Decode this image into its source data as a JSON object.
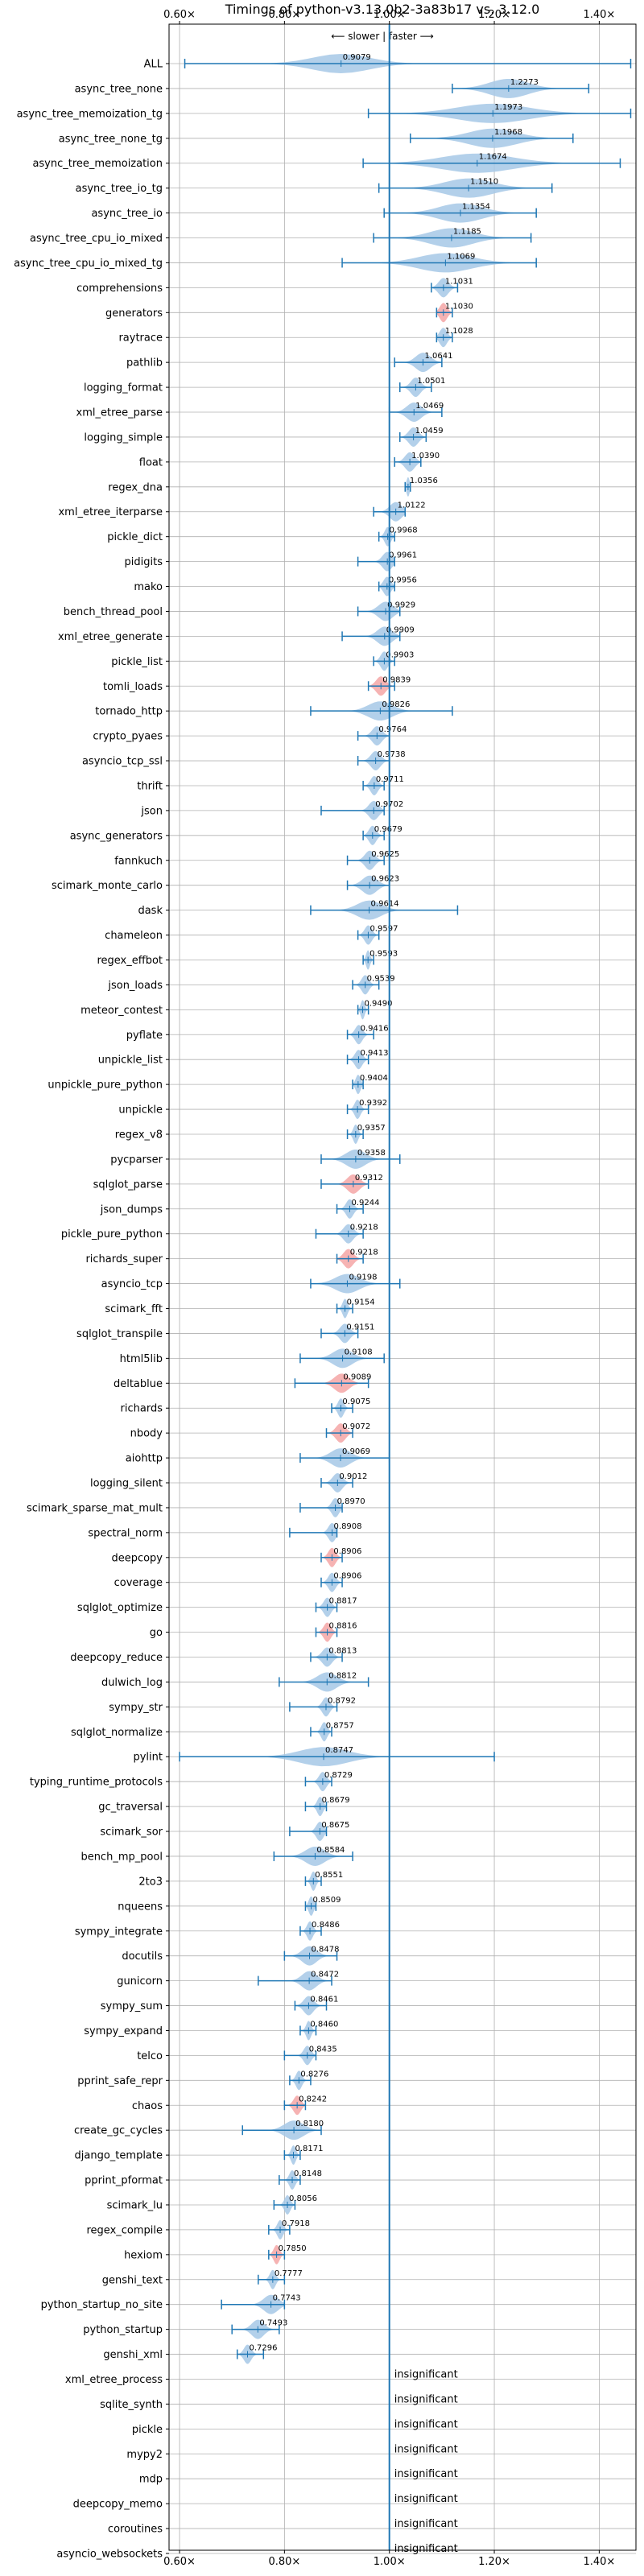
{
  "chart_data": {
    "type": "violin",
    "title": "Timings of python-v3.13.0b2-3a83b17 vs. 3.12.0",
    "subtitle": "⟵ slower | faster ⟶",
    "xlim": [
      0.58,
      1.47
    ],
    "xticks": [
      "0.60×",
      "0.80×",
      "1.00×",
      "1.20×",
      "1.40×"
    ],
    "xtick_values": [
      0.6,
      0.8,
      1.0,
      1.2,
      1.4
    ],
    "grid": true,
    "colors": {
      "normal": "#a6c8e6",
      "regression": "#f4a6a6",
      "line": "#1f77b4"
    },
    "insignificant_label": "insignificant",
    "benchmarks": [
      {
        "name": "ALL",
        "value": 0.9079,
        "label": "0.9079",
        "lo": 0.61,
        "hi": 1.46,
        "spread": 0.12,
        "color": "normal"
      },
      {
        "name": "async_tree_none",
        "value": 1.2273,
        "label": "1.2273",
        "lo": 1.12,
        "hi": 1.38,
        "spread": 0.08,
        "color": "normal"
      },
      {
        "name": "async_tree_memoization_tg",
        "value": 1.1973,
        "label": "1.1973",
        "lo": 0.96,
        "hi": 1.46,
        "spread": 0.15,
        "color": "normal"
      },
      {
        "name": "async_tree_none_tg",
        "value": 1.1968,
        "label": "1.1968",
        "lo": 1.04,
        "hi": 1.35,
        "spread": 0.1,
        "color": "normal"
      },
      {
        "name": "async_tree_memoization",
        "value": 1.1674,
        "label": "1.1674",
        "lo": 0.95,
        "hi": 1.44,
        "spread": 0.15,
        "color": "normal"
      },
      {
        "name": "async_tree_io_tg",
        "value": 1.151,
        "label": "1.1510",
        "lo": 0.98,
        "hi": 1.31,
        "spread": 0.1,
        "color": "normal"
      },
      {
        "name": "async_tree_io",
        "value": 1.1354,
        "label": "1.1354",
        "lo": 0.99,
        "hi": 1.28,
        "spread": 0.09,
        "color": "normal"
      },
      {
        "name": "async_tree_cpu_io_mixed",
        "value": 1.1185,
        "label": "1.1185",
        "lo": 0.97,
        "hi": 1.27,
        "spread": 0.09,
        "color": "normal"
      },
      {
        "name": "async_tree_cpu_io_mixed_tg",
        "value": 1.1069,
        "label": "1.1069",
        "lo": 0.91,
        "hi": 1.28,
        "spread": 0.11,
        "color": "normal"
      },
      {
        "name": "comprehensions",
        "value": 1.1031,
        "label": "1.1031",
        "lo": 1.08,
        "hi": 1.13,
        "spread": 0.02,
        "color": "normal"
      },
      {
        "name": "generators",
        "value": 1.103,
        "label": "1.1030",
        "lo": 1.09,
        "hi": 1.12,
        "spread": 0.015,
        "color": "regression"
      },
      {
        "name": "raytrace",
        "value": 1.1028,
        "label": "1.1028",
        "lo": 1.09,
        "hi": 1.12,
        "spread": 0.015,
        "color": "normal"
      },
      {
        "name": "pathlib",
        "value": 1.0641,
        "label": "1.0641",
        "lo": 1.01,
        "hi": 1.1,
        "spread": 0.03,
        "color": "normal"
      },
      {
        "name": "logging_format",
        "value": 1.0501,
        "label": "1.0501",
        "lo": 1.02,
        "hi": 1.08,
        "spread": 0.02,
        "color": "normal"
      },
      {
        "name": "xml_etree_parse",
        "value": 1.0469,
        "label": "1.0469",
        "lo": 1.0,
        "hi": 1.1,
        "spread": 0.03,
        "color": "normal"
      },
      {
        "name": "logging_simple",
        "value": 1.0459,
        "label": "1.0459",
        "lo": 1.02,
        "hi": 1.07,
        "spread": 0.02,
        "color": "normal"
      },
      {
        "name": "float",
        "value": 1.039,
        "label": "1.0390",
        "lo": 1.01,
        "hi": 1.06,
        "spread": 0.02,
        "color": "normal"
      },
      {
        "name": "regex_dna",
        "value": 1.0356,
        "label": "1.0356",
        "lo": 1.03,
        "hi": 1.04,
        "spread": 0.006,
        "color": "normal"
      },
      {
        "name": "xml_etree_iterparse",
        "value": 1.0122,
        "label": "1.0122",
        "lo": 0.97,
        "hi": 1.03,
        "spread": 0.025,
        "color": "normal"
      },
      {
        "name": "pickle_dict",
        "value": 0.9968,
        "label": "0.9968",
        "lo": 0.98,
        "hi": 1.01,
        "spread": 0.012,
        "color": "normal"
      },
      {
        "name": "pidigits",
        "value": 0.9961,
        "label": "0.9961",
        "lo": 0.94,
        "hi": 1.01,
        "spread": 0.02,
        "color": "normal"
      },
      {
        "name": "mako",
        "value": 0.9956,
        "label": "0.9956",
        "lo": 0.98,
        "hi": 1.01,
        "spread": 0.015,
        "color": "normal"
      },
      {
        "name": "bench_thread_pool",
        "value": 0.9929,
        "label": "0.9929",
        "lo": 0.94,
        "hi": 1.02,
        "spread": 0.03,
        "color": "normal"
      },
      {
        "name": "xml_etree_generate",
        "value": 0.9909,
        "label": "0.9909",
        "lo": 0.91,
        "hi": 1.02,
        "spread": 0.03,
        "color": "normal"
      },
      {
        "name": "pickle_list",
        "value": 0.9903,
        "label": "0.9903",
        "lo": 0.97,
        "hi": 1.01,
        "spread": 0.015,
        "color": "normal"
      },
      {
        "name": "tomli_loads",
        "value": 0.9839,
        "label": "0.9839",
        "lo": 0.96,
        "hi": 1.01,
        "spread": 0.02,
        "color": "regression"
      },
      {
        "name": "tornado_http",
        "value": 0.9826,
        "label": "0.9826",
        "lo": 0.85,
        "hi": 1.12,
        "spread": 0.05,
        "color": "normal"
      },
      {
        "name": "crypto_pyaes",
        "value": 0.9764,
        "label": "0.9764",
        "lo": 0.94,
        "hi": 1.0,
        "spread": 0.02,
        "color": "normal"
      },
      {
        "name": "asyncio_tcp_ssl",
        "value": 0.9738,
        "label": "0.9738",
        "lo": 0.94,
        "hi": 1.0,
        "spread": 0.02,
        "color": "normal"
      },
      {
        "name": "thrift",
        "value": 0.9711,
        "label": "0.9711",
        "lo": 0.95,
        "hi": 0.99,
        "spread": 0.015,
        "color": "normal"
      },
      {
        "name": "json",
        "value": 0.9702,
        "label": "0.9702",
        "lo": 0.87,
        "hi": 0.99,
        "spread": 0.02,
        "color": "normal"
      },
      {
        "name": "async_generators",
        "value": 0.9679,
        "label": "0.9679",
        "lo": 0.95,
        "hi": 0.99,
        "spread": 0.015,
        "color": "normal"
      },
      {
        "name": "fannkuch",
        "value": 0.9625,
        "label": "0.9625",
        "lo": 0.92,
        "hi": 0.99,
        "spread": 0.02,
        "color": "normal"
      },
      {
        "name": "scimark_monte_carlo",
        "value": 0.9623,
        "label": "0.9623",
        "lo": 0.92,
        "hi": 1.0,
        "spread": 0.03,
        "color": "normal"
      },
      {
        "name": "dask",
        "value": 0.9614,
        "label": "0.9614",
        "lo": 0.85,
        "hi": 1.13,
        "spread": 0.05,
        "color": "normal"
      },
      {
        "name": "chameleon",
        "value": 0.9597,
        "label": "0.9597",
        "lo": 0.94,
        "hi": 0.98,
        "spread": 0.015,
        "color": "normal"
      },
      {
        "name": "regex_effbot",
        "value": 0.9593,
        "label": "0.9593",
        "lo": 0.95,
        "hi": 0.97,
        "spread": 0.008,
        "color": "normal"
      },
      {
        "name": "json_loads",
        "value": 0.9539,
        "label": "0.9539",
        "lo": 0.93,
        "hi": 0.98,
        "spread": 0.015,
        "color": "normal"
      },
      {
        "name": "meteor_contest",
        "value": 0.949,
        "label": "0.9490",
        "lo": 0.94,
        "hi": 0.96,
        "spread": 0.008,
        "color": "normal"
      },
      {
        "name": "pyflate",
        "value": 0.9416,
        "label": "0.9416",
        "lo": 0.92,
        "hi": 0.97,
        "spread": 0.015,
        "color": "normal"
      },
      {
        "name": "unpickle_list",
        "value": 0.9413,
        "label": "0.9413",
        "lo": 0.92,
        "hi": 0.96,
        "spread": 0.015,
        "color": "normal"
      },
      {
        "name": "unpickle_pure_python",
        "value": 0.9404,
        "label": "0.9404",
        "lo": 0.93,
        "hi": 0.95,
        "spread": 0.01,
        "color": "normal"
      },
      {
        "name": "unpickle",
        "value": 0.9392,
        "label": "0.9392",
        "lo": 0.92,
        "hi": 0.96,
        "spread": 0.012,
        "color": "normal"
      },
      {
        "name": "regex_v8",
        "value": 0.9357,
        "label": "0.9357",
        "lo": 0.92,
        "hi": 0.95,
        "spread": 0.01,
        "color": "normal"
      },
      {
        "name": "pycparser",
        "value": 0.9358,
        "label": "0.9358",
        "lo": 0.87,
        "hi": 1.02,
        "spread": 0.04,
        "color": "normal"
      },
      {
        "name": "sqlglot_parse",
        "value": 0.9312,
        "label": "0.9312",
        "lo": 0.87,
        "hi": 0.96,
        "spread": 0.025,
        "color": "regression"
      },
      {
        "name": "json_dumps",
        "value": 0.9244,
        "label": "0.9244",
        "lo": 0.9,
        "hi": 0.95,
        "spread": 0.015,
        "color": "normal"
      },
      {
        "name": "pickle_pure_python",
        "value": 0.9218,
        "label": "0.9218",
        "lo": 0.86,
        "hi": 0.95,
        "spread": 0.02,
        "color": "normal"
      },
      {
        "name": "richards_super",
        "value": 0.9218,
        "label": "0.9218",
        "lo": 0.9,
        "hi": 0.95,
        "spread": 0.02,
        "color": "regression"
      },
      {
        "name": "asyncio_tcp",
        "value": 0.9198,
        "label": "0.9198",
        "lo": 0.85,
        "hi": 1.02,
        "spread": 0.05,
        "color": "normal"
      },
      {
        "name": "scimark_fft",
        "value": 0.9154,
        "label": "0.9154",
        "lo": 0.9,
        "hi": 0.93,
        "spread": 0.01,
        "color": "normal"
      },
      {
        "name": "sqlglot_transpile",
        "value": 0.9151,
        "label": "0.9151",
        "lo": 0.87,
        "hi": 0.94,
        "spread": 0.02,
        "color": "normal"
      },
      {
        "name": "html5lib",
        "value": 0.9108,
        "label": "0.9108",
        "lo": 0.83,
        "hi": 0.99,
        "spread": 0.04,
        "color": "normal"
      },
      {
        "name": "deltablue",
        "value": 0.9089,
        "label": "0.9089",
        "lo": 0.82,
        "hi": 0.96,
        "spread": 0.03,
        "color": "regression"
      },
      {
        "name": "richards",
        "value": 0.9075,
        "label": "0.9075",
        "lo": 0.89,
        "hi": 0.93,
        "spread": 0.012,
        "color": "normal"
      },
      {
        "name": "nbody",
        "value": 0.9072,
        "label": "0.9072",
        "lo": 0.88,
        "hi": 0.93,
        "spread": 0.02,
        "color": "regression"
      },
      {
        "name": "aiohttp",
        "value": 0.9069,
        "label": "0.9069",
        "lo": 0.83,
        "hi": 1.0,
        "spread": 0.04,
        "color": "normal"
      },
      {
        "name": "logging_silent",
        "value": 0.9012,
        "label": "0.9012",
        "lo": 0.87,
        "hi": 0.93,
        "spread": 0.02,
        "color": "normal"
      },
      {
        "name": "scimark_sparse_mat_mult",
        "value": 0.897,
        "label": "0.8970",
        "lo": 0.83,
        "hi": 0.91,
        "spread": 0.015,
        "color": "normal"
      },
      {
        "name": "spectral_norm",
        "value": 0.8908,
        "label": "0.8908",
        "lo": 0.81,
        "hi": 0.9,
        "spread": 0.015,
        "color": "normal"
      },
      {
        "name": "deepcopy",
        "value": 0.8906,
        "label": "0.8906",
        "lo": 0.87,
        "hi": 0.91,
        "spread": 0.015,
        "color": "regression"
      },
      {
        "name": "coverage",
        "value": 0.8906,
        "label": "0.8906",
        "lo": 0.87,
        "hi": 0.91,
        "spread": 0.015,
        "color": "normal"
      },
      {
        "name": "sqlglot_optimize",
        "value": 0.8817,
        "label": "0.8817",
        "lo": 0.86,
        "hi": 0.9,
        "spread": 0.015,
        "color": "normal"
      },
      {
        "name": "go",
        "value": 0.8816,
        "label": "0.8816",
        "lo": 0.86,
        "hi": 0.9,
        "spread": 0.015,
        "color": "regression"
      },
      {
        "name": "deepcopy_reduce",
        "value": 0.8813,
        "label": "0.8813",
        "lo": 0.85,
        "hi": 0.91,
        "spread": 0.02,
        "color": "normal"
      },
      {
        "name": "dulwich_log",
        "value": 0.8812,
        "label": "0.8812",
        "lo": 0.79,
        "hi": 0.96,
        "spread": 0.04,
        "color": "normal"
      },
      {
        "name": "sympy_str",
        "value": 0.8792,
        "label": "0.8792",
        "lo": 0.81,
        "hi": 0.9,
        "spread": 0.015,
        "color": "normal"
      },
      {
        "name": "sqlglot_normalize",
        "value": 0.8757,
        "label": "0.8757",
        "lo": 0.85,
        "hi": 0.89,
        "spread": 0.012,
        "color": "normal"
      },
      {
        "name": "pylint",
        "value": 0.8747,
        "label": "0.8747",
        "lo": 0.6,
        "hi": 1.2,
        "spread": 0.1,
        "color": "normal"
      },
      {
        "name": "typing_runtime_protocols",
        "value": 0.8729,
        "label": "0.8729",
        "lo": 0.84,
        "hi": 0.89,
        "spread": 0.015,
        "color": "normal"
      },
      {
        "name": "gc_traversal",
        "value": 0.8679,
        "label": "0.8679",
        "lo": 0.84,
        "hi": 0.88,
        "spread": 0.012,
        "color": "normal"
      },
      {
        "name": "scimark_sor",
        "value": 0.8675,
        "label": "0.8675",
        "lo": 0.81,
        "hi": 0.88,
        "spread": 0.015,
        "color": "normal"
      },
      {
        "name": "bench_mp_pool",
        "value": 0.8584,
        "label": "0.8584",
        "lo": 0.78,
        "hi": 0.93,
        "spread": 0.04,
        "color": "normal"
      },
      {
        "name": "2to3",
        "value": 0.8551,
        "label": "0.8551",
        "lo": 0.84,
        "hi": 0.87,
        "spread": 0.01,
        "color": "normal"
      },
      {
        "name": "nqueens",
        "value": 0.8509,
        "label": "0.8509",
        "lo": 0.84,
        "hi": 0.86,
        "spread": 0.01,
        "color": "normal"
      },
      {
        "name": "sympy_integrate",
        "value": 0.8486,
        "label": "0.8486",
        "lo": 0.83,
        "hi": 0.87,
        "spread": 0.012,
        "color": "normal"
      },
      {
        "name": "docutils",
        "value": 0.8478,
        "label": "0.8478",
        "lo": 0.8,
        "hi": 0.9,
        "spread": 0.03,
        "color": "normal"
      },
      {
        "name": "gunicorn",
        "value": 0.8472,
        "label": "0.8472",
        "lo": 0.75,
        "hi": 0.89,
        "spread": 0.03,
        "color": "normal"
      },
      {
        "name": "sympy_sum",
        "value": 0.8461,
        "label": "0.8461",
        "lo": 0.82,
        "hi": 0.88,
        "spread": 0.02,
        "color": "normal"
      },
      {
        "name": "sympy_expand",
        "value": 0.846,
        "label": "0.8460",
        "lo": 0.83,
        "hi": 0.86,
        "spread": 0.01,
        "color": "normal"
      },
      {
        "name": "telco",
        "value": 0.8435,
        "label": "0.8435",
        "lo": 0.8,
        "hi": 0.86,
        "spread": 0.015,
        "color": "normal"
      },
      {
        "name": "pprint_safe_repr",
        "value": 0.8276,
        "label": "0.8276",
        "lo": 0.81,
        "hi": 0.85,
        "spread": 0.012,
        "color": "normal"
      },
      {
        "name": "chaos",
        "value": 0.8242,
        "label": "0.8242",
        "lo": 0.8,
        "hi": 0.84,
        "spread": 0.015,
        "color": "regression"
      },
      {
        "name": "create_gc_cycles",
        "value": 0.818,
        "label": "0.8180",
        "lo": 0.72,
        "hi": 0.87,
        "spread": 0.04,
        "color": "normal"
      },
      {
        "name": "django_template",
        "value": 0.8171,
        "label": "0.8171",
        "lo": 0.8,
        "hi": 0.83,
        "spread": 0.01,
        "color": "normal"
      },
      {
        "name": "pprint_pformat",
        "value": 0.8148,
        "label": "0.8148",
        "lo": 0.79,
        "hi": 0.83,
        "spread": 0.012,
        "color": "normal"
      },
      {
        "name": "scimark_lu",
        "value": 0.8056,
        "label": "0.8056",
        "lo": 0.78,
        "hi": 0.82,
        "spread": 0.012,
        "color": "normal"
      },
      {
        "name": "regex_compile",
        "value": 0.7918,
        "label": "0.7918",
        "lo": 0.77,
        "hi": 0.81,
        "spread": 0.012,
        "color": "normal"
      },
      {
        "name": "hexiom",
        "value": 0.785,
        "label": "0.7850",
        "lo": 0.77,
        "hi": 0.8,
        "spread": 0.012,
        "color": "regression"
      },
      {
        "name": "genshi_text",
        "value": 0.7777,
        "label": "0.7777",
        "lo": 0.75,
        "hi": 0.8,
        "spread": 0.012,
        "color": "normal"
      },
      {
        "name": "python_startup_no_site",
        "value": 0.7743,
        "label": "0.7743",
        "lo": 0.68,
        "hi": 0.8,
        "spread": 0.03,
        "color": "normal"
      },
      {
        "name": "python_startup",
        "value": 0.7493,
        "label": "0.7493",
        "lo": 0.7,
        "hi": 0.79,
        "spread": 0.025,
        "color": "normal"
      },
      {
        "name": "genshi_xml",
        "value": 0.7296,
        "label": "0.7296",
        "lo": 0.71,
        "hi": 0.76,
        "spread": 0.015,
        "color": "normal"
      }
    ],
    "insignificant": [
      "xml_etree_process",
      "sqlite_synth",
      "pickle",
      "mypy2",
      "mdp",
      "deepcopy_memo",
      "coroutines",
      "asyncio_websockets"
    ]
  }
}
